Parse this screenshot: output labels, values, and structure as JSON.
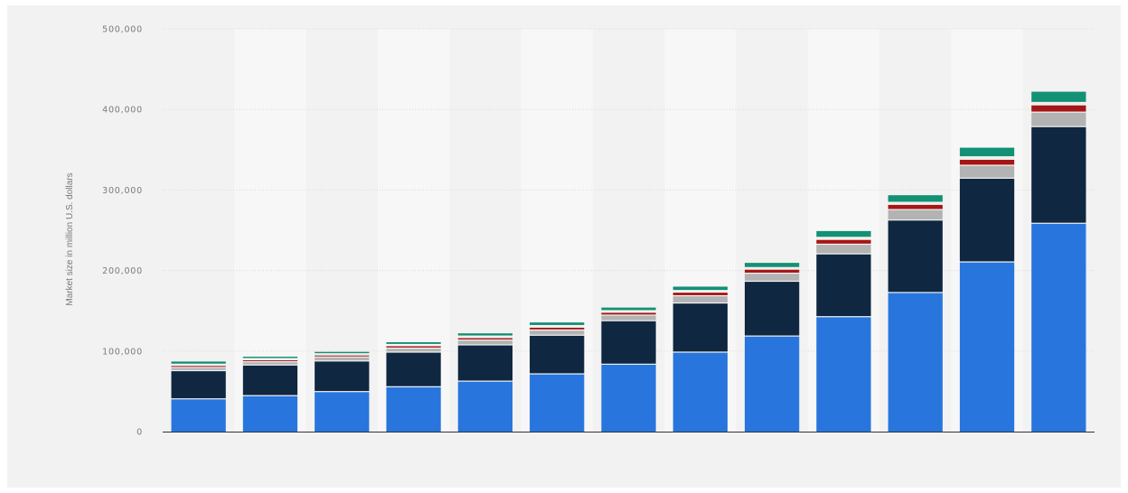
{
  "chart_data": {
    "type": "bar",
    "stacked": true,
    "title": "",
    "xlabel": "",
    "ylabel": "Market size in million U.S. dollars",
    "ylim": [
      0,
      500000
    ],
    "y_ticks": [
      0,
      100000,
      200000,
      300000,
      400000,
      500000
    ],
    "y_tick_labels": [
      "0",
      "100,000",
      "200,000",
      "300,000",
      "400,000",
      "500,000"
    ],
    "grid": true,
    "legend": "none",
    "categories": [
      "",
      "",
      "",
      "",
      "",
      "",
      "",
      "",
      "",
      "",
      "",
      "",
      ""
    ],
    "series": [
      {
        "color": "#2876dd",
        "values": [
          40000,
          44000,
          49000,
          55000,
          62000,
          71000,
          83000,
          98000,
          118000,
          142000,
          172000,
          210000,
          258000
        ]
      },
      {
        "color": "#0f2740",
        "values": [
          35000,
          38000,
          38000,
          43000,
          45000,
          48000,
          54000,
          61000,
          68000,
          78000,
          90000,
          104000,
          120000
        ]
      },
      {
        "color": "#b3b3b3",
        "values": [
          4000,
          4000,
          5000,
          5000,
          6000,
          6500,
          7000,
          9000,
          10000,
          12000,
          13000,
          16000,
          18000
        ]
      },
      {
        "color": "#a51616",
        "values": [
          2500,
          2500,
          2500,
          3000,
          3000,
          3500,
          3500,
          4500,
          5000,
          6000,
          6500,
          7500,
          9000
        ]
      },
      {
        "color": "#ececec",
        "values": [
          1500,
          1500,
          1500,
          1500,
          2000,
          2000,
          2000,
          2000,
          2000,
          2500,
          2500,
          3000,
          3000
        ]
      },
      {
        "color": "#139174",
        "values": [
          4000,
          3000,
          3000,
          3500,
          4000,
          4500,
          4500,
          5500,
          6500,
          8500,
          9500,
          12000,
          14000
        ]
      }
    ],
    "colors": {
      "background": "#f2f2f2",
      "column_band": "#f7f7f7",
      "grid": "#d9d9d9",
      "axis": "#333333"
    }
  }
}
